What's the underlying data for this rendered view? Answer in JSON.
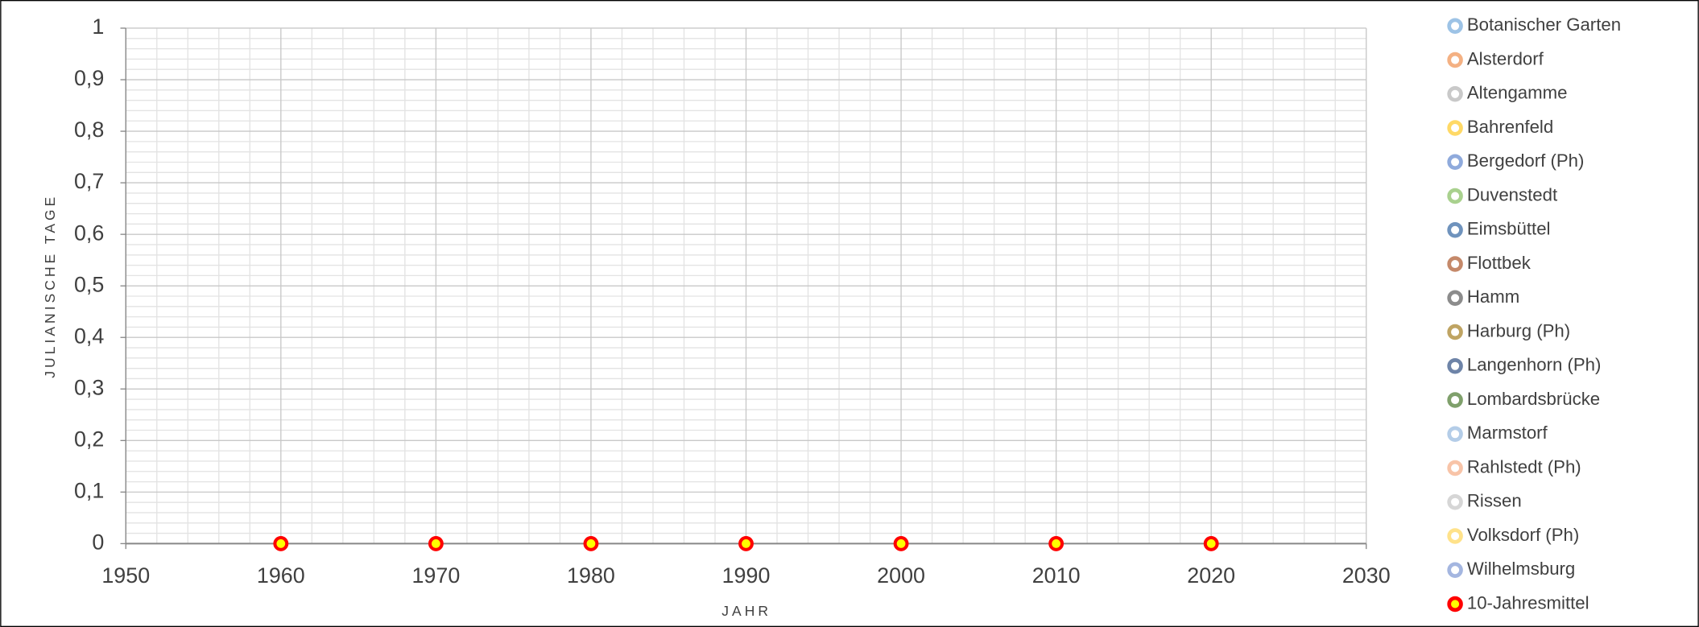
{
  "chart_data": {
    "type": "scatter",
    "x_label": "JAHR",
    "y_label": "JULIANISCHE TAGE",
    "xlim": [
      1950,
      2030
    ],
    "xticks": [
      1950,
      1960,
      1970,
      1980,
      1990,
      2000,
      2010,
      2020,
      2030
    ],
    "ylim": [
      0,
      1
    ],
    "yticks": [
      0,
      {
        "value": 0.1,
        "label": "0,1"
      },
      {
        "value": 0.2,
        "label": "0,2"
      },
      {
        "value": 0.3,
        "label": "0,3"
      },
      {
        "value": 0.4,
        "label": "0,4"
      },
      {
        "value": 0.5,
        "label": "0,5"
      },
      {
        "value": 0.6,
        "label": "0,6"
      },
      {
        "value": 0.7,
        "label": "0,7"
      },
      {
        "value": 0.8,
        "label": "0,8"
      },
      {
        "value": 0.9,
        "label": "0,9"
      },
      1
    ],
    "grid": true,
    "minor_grid": true,
    "legend": "right",
    "series": [
      {
        "name": "Botanischer Garten",
        "color": "#9dc3e6",
        "x": [],
        "values": []
      },
      {
        "name": "Alsterdorf",
        "color": "#f4b183",
        "x": [],
        "values": []
      },
      {
        "name": "Altengamme",
        "color": "#c9c9c9",
        "x": [],
        "values": []
      },
      {
        "name": "Bahrenfeld",
        "color": "#ffd966",
        "x": [],
        "values": []
      },
      {
        "name": "Bergedorf (Ph)",
        "color": "#8faadc",
        "x": [],
        "values": []
      },
      {
        "name": "Duvenstedt",
        "color": "#a9d18e",
        "x": [],
        "values": []
      },
      {
        "name": "Eimsbüttel",
        "color": "#6f93bd",
        "x": [],
        "values": []
      },
      {
        "name": "Flottbek",
        "color": "#c5896a",
        "x": [],
        "values": []
      },
      {
        "name": "Hamm",
        "color": "#8c8c8c",
        "x": [],
        "values": []
      },
      {
        "name": "Harburg (Ph)",
        "color": "#bfa463",
        "x": [],
        "values": []
      },
      {
        "name": "Langenhorn (Ph)",
        "color": "#6e84a8",
        "x": [],
        "values": []
      },
      {
        "name": "Lombardsbrücke",
        "color": "#7fa06b",
        "x": [],
        "values": []
      },
      {
        "name": "Marmstorf",
        "color": "#b4cde8",
        "x": [],
        "values": []
      },
      {
        "name": "Rahlstedt (Ph)",
        "color": "#f8c4a8",
        "x": [],
        "values": []
      },
      {
        "name": "Rissen",
        "color": "#d6d6d6",
        "x": [],
        "values": []
      },
      {
        "name": "Volksdorf (Ph)",
        "color": "#ffe28a",
        "x": [],
        "values": []
      },
      {
        "name": "Wilhelmsburg",
        "color": "#a4b6e0",
        "x": [],
        "values": []
      },
      {
        "name": "10-Jahresmittel",
        "color": "#ff0000",
        "marker_fill": "#ffff00",
        "x": [
          1960,
          1970,
          1980,
          1990,
          2000,
          2010,
          2020
        ],
        "values": [
          0,
          0,
          0,
          0,
          0,
          0,
          0
        ]
      }
    ]
  }
}
